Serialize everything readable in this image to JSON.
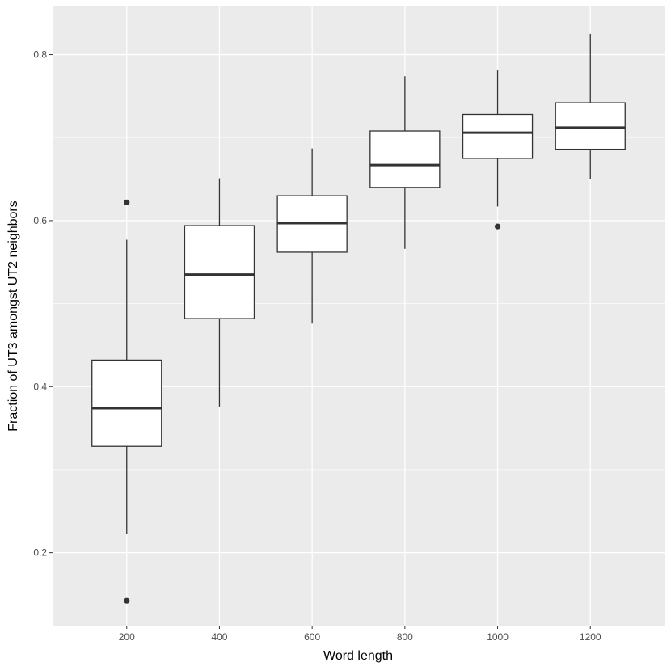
{
  "chart_data": {
    "type": "boxplot",
    "title": "",
    "xlabel": "Word length",
    "ylabel": "Fraction of UT3 amongst UT2 neighbors",
    "x_ticks": [
      200,
      400,
      600,
      800,
      1000,
      1200
    ],
    "y_ticks": [
      0.2,
      0.4,
      0.6,
      0.8
    ],
    "xlim": [
      40,
      1360
    ],
    "ylim": [
      0.112,
      0.858
    ],
    "grid": true,
    "legend": "none",
    "box_width": 150,
    "boxes": [
      {
        "x": 200,
        "whisker_low": 0.223,
        "q1": 0.328,
        "median": 0.374,
        "q3": 0.432,
        "whisker_high": 0.577,
        "outliers": [
          0.622,
          0.142
        ]
      },
      {
        "x": 400,
        "whisker_low": 0.376,
        "q1": 0.482,
        "median": 0.535,
        "q3": 0.594,
        "whisker_high": 0.651,
        "outliers": []
      },
      {
        "x": 600,
        "whisker_low": 0.476,
        "q1": 0.562,
        "median": 0.597,
        "q3": 0.63,
        "whisker_high": 0.687,
        "outliers": []
      },
      {
        "x": 800,
        "whisker_low": 0.566,
        "q1": 0.64,
        "median": 0.667,
        "q3": 0.708,
        "whisker_high": 0.774,
        "outliers": []
      },
      {
        "x": 1000,
        "whisker_low": 0.617,
        "q1": 0.675,
        "median": 0.706,
        "q3": 0.728,
        "whisker_high": 0.781,
        "outliers": [
          0.593
        ]
      },
      {
        "x": 1200,
        "whisker_low": 0.65,
        "q1": 0.686,
        "median": 0.712,
        "q3": 0.742,
        "whisker_high": 0.825,
        "outliers": []
      }
    ],
    "colors": {
      "panel_bg": "#ebebeb",
      "grid": "#ffffff",
      "box_fill": "#ffffff",
      "box_line": "#333333",
      "tick_text": "#4d4d4d",
      "tick_mark": "#333333"
    }
  }
}
